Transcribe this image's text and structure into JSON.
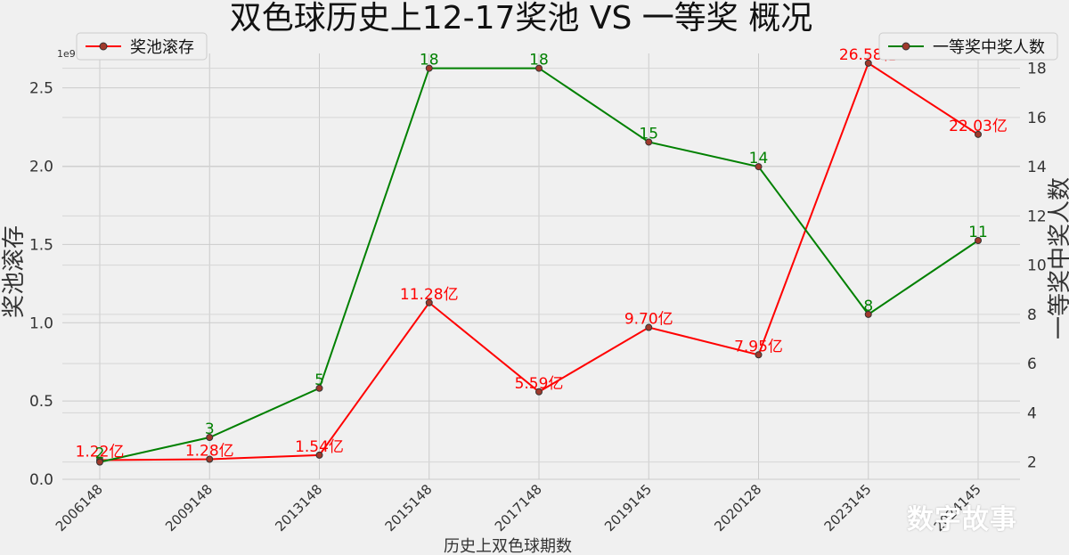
{
  "chart_data": {
    "type": "line",
    "title": "双色球历史上12-17奖池 VS 一等奖 概况",
    "xlabel": "历史上双色球期数",
    "ylabel_left": "奖池滚存",
    "ylabel_right": "一等奖中奖人数",
    "left_axis_multiplier": "1e9",
    "categories": [
      "2006148",
      "2009148",
      "2013148",
      "2015148",
      "2017148",
      "2019145",
      "2020128",
      "2023145",
      "2024145"
    ],
    "series": [
      {
        "name": "奖池滚存",
        "axis": "left",
        "color": "#ff0000",
        "values": [
          122000000,
          128000000,
          154000000,
          1128000000,
          559000000,
          970000000,
          795000000,
          2658000000,
          2203000000
        ],
        "labels": [
          "1.22亿",
          "1.28亿",
          "1.54亿",
          "11.28亿",
          "5.59亿",
          "9.70亿",
          "7.95亿",
          "26.58亿",
          "22.03亿"
        ],
        "legend_position": "upper-left"
      },
      {
        "name": "一等奖中奖人数",
        "axis": "right",
        "color": "#008000",
        "values": [
          2,
          3,
          5,
          18,
          18,
          15,
          14,
          8,
          11
        ],
        "labels": [
          "2",
          "3",
          "5",
          "18",
          "18",
          "15",
          "14",
          "8",
          "11"
        ],
        "legend_position": "upper-right"
      }
    ],
    "ylim_left": [
      0,
      2.72
    ],
    "yticks_left": [
      "0.0",
      "0.5",
      "1.0",
      "1.5",
      "2.0",
      "2.5"
    ],
    "ylim_right": [
      1.3,
      18.6
    ],
    "yticks_right": [
      "2",
      "4",
      "6",
      "8",
      "10",
      "12",
      "14",
      "16",
      "18"
    ],
    "grid": true
  },
  "watermark": "数字故事"
}
